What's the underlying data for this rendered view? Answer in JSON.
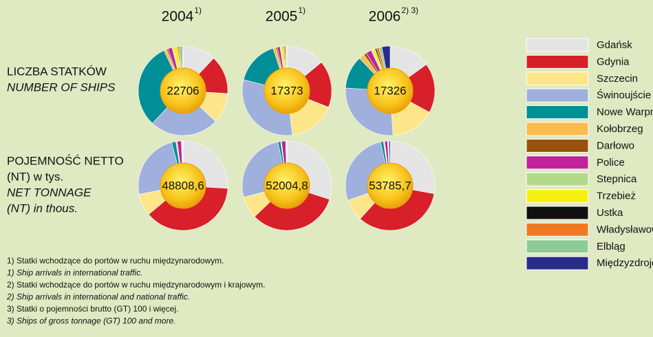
{
  "legend": {
    "categories": [
      "Gdańsk",
      "Gdynia",
      "Szczecin",
      "Świnoujście",
      "Nowe Warpno",
      "Kołobrzeg",
      "Darłowo",
      "Police",
      "Stepnica",
      "Trzebież",
      "Ustka",
      "Władysławowo",
      "Elbląg",
      "Międzyzdroje"
    ],
    "colors": [
      "#e4e4e4",
      "#d7202a",
      "#fde68a",
      "#9fb0dc",
      "#008f97",
      "#fbbc4d",
      "#9a5208",
      "#c0229a",
      "#b5d98b",
      "#f5f00f",
      "#111111",
      "#f07820",
      "#8fcb98",
      "#2a2a8c"
    ]
  },
  "columns": [
    {
      "year": "2004",
      "note": "1)"
    },
    {
      "year": "2005",
      "note": "1)"
    },
    {
      "year": "2006",
      "note": "2) 3)"
    }
  ],
  "rows": [
    {
      "label": "LICZBA STATKÓW",
      "label_en": "NUMBER OF SHIPS"
    },
    {
      "label": "POJEMNOŚĆ NETTO",
      "label2": "(NT) w tys.",
      "label_en": "NET TONNAGE",
      "label_en2": "(NT) in thous."
    }
  ],
  "chart_data": [
    {
      "type": "pie",
      "total": 22706,
      "values": [
        12,
        14,
        11,
        25,
        31,
        1,
        0.5,
        1.5,
        0.5,
        1.5,
        0.3,
        0.5,
        1,
        0.2
      ]
    },
    {
      "type": "pie",
      "total": 17373,
      "values": [
        14,
        17,
        17,
        31,
        16,
        1,
        0.5,
        1,
        0.3,
        1,
        0.3,
        0.5,
        0.3,
        0.1
      ]
    },
    {
      "type": "pie",
      "total": 17326,
      "values": [
        15,
        18,
        16,
        27,
        12,
        2,
        1,
        2,
        0.5,
        1,
        0.5,
        1,
        1,
        3
      ]
    },
    {
      "type": "pie",
      "total": 48808.6,
      "total_label": "48808,6",
      "values": [
        26,
        38,
        8,
        24,
        1.5,
        0.3,
        0.2,
        1.5,
        0.1,
        0.2,
        0.05,
        0.1,
        0.1,
        0.05
      ]
    },
    {
      "type": "pie",
      "total": 52004.8,
      "total_label": "52004,8",
      "values": [
        30,
        33,
        8,
        26,
        1,
        0.2,
        0.1,
        1.5,
        0.05,
        0.1,
        0.05,
        0.1,
        0.1,
        0.05
      ]
    },
    {
      "type": "pie",
      "total": 53785.7,
      "total_label": "53785,7",
      "values": [
        28,
        34,
        8,
        27,
        1,
        0.3,
        0.2,
        1,
        0.1,
        0.1,
        0.05,
        0.1,
        0.1,
        0.5
      ]
    }
  ],
  "footnotes": [
    "1) Statki wchodzące do portów w ruchu międzynarodowym.",
    "1) Ship arrivals in international traffic.",
    "2) Statki wchodzące do portów w ruchu międzynarodowym i krajowym.",
    "2) Ship arrivals in international and national traffic.",
    "3) Statki o pojemności brutto (GT) 100 i więcej.",
    "3) Ships of gross tonnage (GT) 100 and more."
  ]
}
